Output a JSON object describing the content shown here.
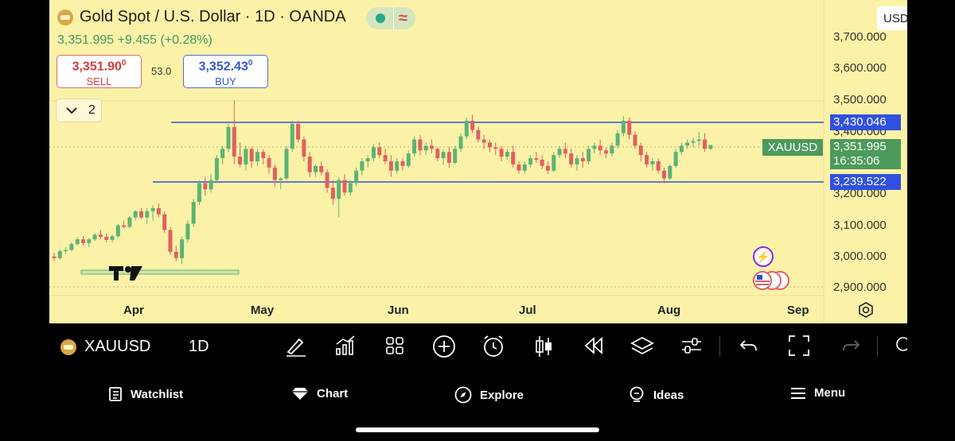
{
  "header": {
    "title": "Gold Spot / U.S. Dollar · 1D · OANDA",
    "quote": "3,351.995 +9.455 (+0.28%)",
    "sell": {
      "price_main": "3,351.90",
      "price_sup": "0",
      "label": "SELL"
    },
    "buy": {
      "price_main": "3,352.43",
      "price_sup": "0",
      "label": "BUY"
    },
    "spread": "53.0",
    "indicator_count": "2",
    "currency": "USD"
  },
  "price_axis": {
    "labels": [
      "3,700.000",
      "3,600.000",
      "3,500.000",
      "3,400.000",
      "3,200.000",
      "3,100.000",
      "3,000.000",
      "2,900.000"
    ],
    "resistance_tag": "3,430.046",
    "support_tag": "3,239.522",
    "last_price": "3,351.995",
    "countdown": "16:35:06",
    "symbol_tag": "XAUUSD"
  },
  "time_axis": {
    "labels": [
      "Apr",
      "May",
      "Jun",
      "Jul",
      "Aug",
      "Sep"
    ]
  },
  "chart_data": {
    "type": "candlestick",
    "symbol": "XAUUSD",
    "interval": "1D",
    "title": "Gold Spot / U.S. Dollar · 1D · OANDA",
    "ylim": [
      2880,
      3720
    ],
    "horizontal_lines": [
      3430.046,
      3239.522
    ],
    "candles": [
      [
        2995,
        3008,
        2980,
        2990
      ],
      [
        2990,
        3018,
        2985,
        3012
      ],
      [
        3012,
        3025,
        3005,
        3016
      ],
      [
        3016,
        3040,
        3012,
        3035
      ],
      [
        3035,
        3058,
        3030,
        3050
      ],
      [
        3050,
        3060,
        3030,
        3038
      ],
      [
        3038,
        3055,
        3025,
        3050
      ],
      [
        3050,
        3070,
        3045,
        3065
      ],
      [
        3065,
        3080,
        3050,
        3058
      ],
      [
        3058,
        3070,
        3040,
        3048
      ],
      [
        3048,
        3065,
        3040,
        3060
      ],
      [
        3060,
        3100,
        3055,
        3095
      ],
      [
        3095,
        3110,
        3085,
        3090
      ],
      [
        3090,
        3125,
        3085,
        3120
      ],
      [
        3120,
        3145,
        3110,
        3140
      ],
      [
        3140,
        3150,
        3115,
        3120
      ],
      [
        3120,
        3150,
        3100,
        3140
      ],
      [
        3140,
        3160,
        3110,
        3150
      ],
      [
        3150,
        3165,
        3120,
        3130
      ],
      [
        3130,
        3140,
        3070,
        3080
      ],
      [
        3080,
        3090,
        3000,
        3010
      ],
      [
        3010,
        3030,
        2980,
        2990
      ],
      [
        2990,
        3060,
        2970,
        3050
      ],
      [
        3050,
        3110,
        3040,
        3100
      ],
      [
        3100,
        3180,
        3090,
        3170
      ],
      [
        3170,
        3240,
        3160,
        3230
      ],
      [
        3230,
        3250,
        3190,
        3210
      ],
      [
        3210,
        3260,
        3200,
        3240
      ],
      [
        3240,
        3320,
        3230,
        3310
      ],
      [
        3310,
        3350,
        3290,
        3340
      ],
      [
        3340,
        3420,
        3330,
        3410
      ],
      [
        3410,
        3495,
        3290,
        3315
      ],
      [
        3315,
        3360,
        3280,
        3290
      ],
      [
        3290,
        3350,
        3270,
        3340
      ],
      [
        3340,
        3345,
        3280,
        3300
      ],
      [
        3300,
        3340,
        3285,
        3330
      ],
      [
        3330,
        3338,
        3290,
        3310
      ],
      [
        3310,
        3320,
        3260,
        3280
      ],
      [
        3280,
        3290,
        3220,
        3240
      ],
      [
        3240,
        3250,
        3210,
        3245
      ],
      [
        3245,
        3350,
        3240,
        3340
      ],
      [
        3340,
        3430,
        3330,
        3420
      ],
      [
        3420,
        3430,
        3360,
        3370
      ],
      [
        3370,
        3380,
        3300,
        3315
      ],
      [
        3315,
        3330,
        3250,
        3265
      ],
      [
        3265,
        3290,
        3250,
        3285
      ],
      [
        3285,
        3300,
        3255,
        3265
      ],
      [
        3265,
        3275,
        3200,
        3215
      ],
      [
        3215,
        3240,
        3160,
        3180
      ],
      [
        3180,
        3250,
        3120,
        3240
      ],
      [
        3240,
        3260,
        3190,
        3200
      ],
      [
        3200,
        3240,
        3190,
        3230
      ],
      [
        3230,
        3280,
        3220,
        3270
      ],
      [
        3270,
        3310,
        3255,
        3300
      ],
      [
        3300,
        3320,
        3280,
        3310
      ],
      [
        3310,
        3355,
        3300,
        3345
      ],
      [
        3345,
        3360,
        3310,
        3320
      ],
      [
        3320,
        3340,
        3290,
        3300
      ],
      [
        3300,
        3320,
        3250,
        3270
      ],
      [
        3270,
        3310,
        3260,
        3300
      ],
      [
        3300,
        3310,
        3270,
        3285
      ],
      [
        3285,
        3335,
        3280,
        3325
      ],
      [
        3325,
        3380,
        3315,
        3370
      ],
      [
        3370,
        3385,
        3320,
        3335
      ],
      [
        3335,
        3360,
        3320,
        3350
      ],
      [
        3350,
        3370,
        3325,
        3340
      ],
      [
        3340,
        3345,
        3300,
        3310
      ],
      [
        3310,
        3340,
        3290,
        3330
      ],
      [
        3330,
        3345,
        3280,
        3295
      ],
      [
        3295,
        3350,
        3290,
        3340
      ],
      [
        3340,
        3390,
        3330,
        3380
      ],
      [
        3380,
        3440,
        3370,
        3430
      ],
      [
        3430,
        3450,
        3390,
        3400
      ],
      [
        3400,
        3410,
        3360,
        3370
      ],
      [
        3370,
        3385,
        3340,
        3360
      ],
      [
        3360,
        3370,
        3330,
        3345
      ],
      [
        3345,
        3360,
        3320,
        3340
      ],
      [
        3340,
        3350,
        3300,
        3315
      ],
      [
        3315,
        3340,
        3305,
        3330
      ],
      [
        3330,
        3350,
        3280,
        3290
      ],
      [
        3290,
        3300,
        3260,
        3270
      ],
      [
        3270,
        3300,
        3260,
        3290
      ],
      [
        3290,
        3320,
        3280,
        3310
      ],
      [
        3310,
        3330,
        3295,
        3305
      ],
      [
        3305,
        3320,
        3275,
        3285
      ],
      [
        3285,
        3300,
        3260,
        3270
      ],
      [
        3270,
        3330,
        3265,
        3320
      ],
      [
        3320,
        3350,
        3310,
        3340
      ],
      [
        3340,
        3360,
        3310,
        3325
      ],
      [
        3325,
        3340,
        3280,
        3290
      ],
      [
        3290,
        3320,
        3270,
        3310
      ],
      [
        3310,
        3330,
        3280,
        3300
      ],
      [
        3300,
        3350,
        3290,
        3340
      ],
      [
        3340,
        3360,
        3325,
        3350
      ],
      [
        3350,
        3370,
        3320,
        3335
      ],
      [
        3335,
        3345,
        3310,
        3325
      ],
      [
        3325,
        3360,
        3315,
        3350
      ],
      [
        3350,
        3400,
        3340,
        3390
      ],
      [
        3390,
        3445,
        3380,
        3430
      ],
      [
        3430,
        3440,
        3370,
        3385
      ],
      [
        3385,
        3395,
        3340,
        3350
      ],
      [
        3350,
        3360,
        3300,
        3320
      ],
      [
        3320,
        3330,
        3280,
        3290
      ],
      [
        3290,
        3310,
        3270,
        3300
      ],
      [
        3300,
        3310,
        3260,
        3270
      ],
      [
        3270,
        3280,
        3230,
        3245
      ],
      [
        3245,
        3290,
        3240,
        3285
      ],
      [
        3285,
        3340,
        3280,
        3330
      ],
      [
        3330,
        3360,
        3320,
        3350
      ],
      [
        3350,
        3370,
        3340,
        3360
      ],
      [
        3360,
        3375,
        3345,
        3365
      ],
      [
        3365,
        3395,
        3350,
        3370
      ],
      [
        3370,
        3390,
        3330,
        3340
      ],
      [
        3340,
        3352,
        3335,
        3352
      ]
    ]
  },
  "toolbar": {
    "symbol": "XAUUSD",
    "interval": "1D"
  },
  "bottom_nav": {
    "items": [
      {
        "label": "Watchlist",
        "icon": "watchlist-icon"
      },
      {
        "label": "Chart",
        "icon": "chart-diamond-icon"
      },
      {
        "label": "Explore",
        "icon": "compass-icon"
      },
      {
        "label": "Ideas",
        "icon": "ideas-icon"
      },
      {
        "label": "Menu",
        "icon": "menu-icon"
      }
    ]
  },
  "colors": {
    "chart_bg": "#fcf2a7",
    "up": "#5cb377",
    "down": "#e06062",
    "line": "#2f4fdb",
    "tag_green": "#4c9a5c",
    "tag_blue": "#3050e0"
  }
}
